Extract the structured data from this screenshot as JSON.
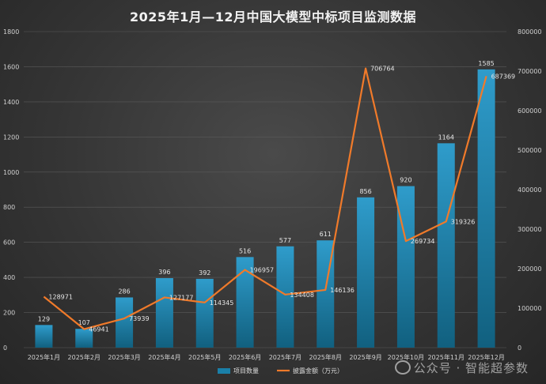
{
  "chart_data": {
    "type": "bar+line",
    "title": "2025年1月—12月中国大模型中标项目监测数据",
    "categories": [
      "2025年1月",
      "2025年2月",
      "2025年3月",
      "2025年4月",
      "2025年5月",
      "2025年6月",
      "2025年7月",
      "2025年8月",
      "2025年9月",
      "2025年10月",
      "2025年11月",
      "2025年12月"
    ],
    "series": [
      {
        "name": "项目数量",
        "type": "bar",
        "axis": "left",
        "color": "#1a7fa8",
        "values": [
          129,
          107,
          286,
          396,
          392,
          516,
          577,
          611,
          856,
          920,
          1164,
          1585
        ]
      },
      {
        "name": "披露金额（万元）",
        "type": "line",
        "axis": "right",
        "color": "#f07a2a",
        "values": [
          128971,
          46941,
          73939,
          127177,
          114345,
          196957,
          134408,
          146136,
          706764,
          269734,
          319326,
          687369
        ]
      }
    ],
    "y_left": {
      "min": 0,
      "max": 1800,
      "ticks": [
        0,
        200,
        400,
        600,
        800,
        1000,
        1200,
        1400,
        1600,
        1800
      ]
    },
    "y_right": {
      "min": 0,
      "max": 800000,
      "ticks": [
        0,
        100000,
        200000,
        300000,
        400000,
        500000,
        600000,
        700000,
        800000
      ]
    },
    "legend_position": "bottom-center",
    "grid": true
  },
  "watermark": "公众号 · 智能超参数"
}
